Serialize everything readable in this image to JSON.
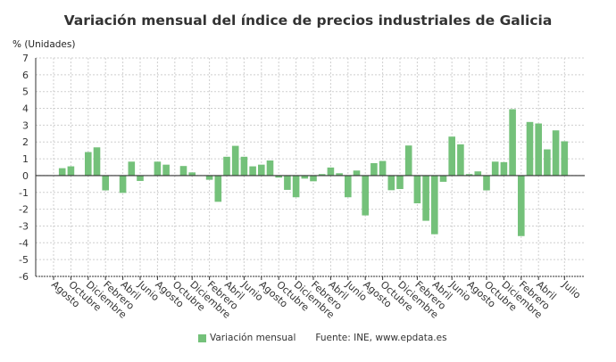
{
  "chart_data": {
    "type": "bar",
    "title": "Variación mensual del índice de precios industriales de Galicia",
    "ylabel": "% (Unidades)",
    "xlabel": "",
    "ylim": [
      -6,
      7
    ],
    "yticks": [
      7,
      6,
      5,
      4,
      3,
      2,
      1,
      0,
      -1,
      -2,
      -3,
      -4,
      -5,
      -6
    ],
    "grid": true,
    "legend_position": "bottom",
    "bar_color": "#74c17a",
    "tick_labels": [
      {
        "index": 0,
        "label": "Agosto"
      },
      {
        "index": 2,
        "label": "Octubre"
      },
      {
        "index": 4,
        "label": "Diciembre"
      },
      {
        "index": 6,
        "label": "Febrero"
      },
      {
        "index": 8,
        "label": "Abril"
      },
      {
        "index": 10,
        "label": "Junio"
      },
      {
        "index": 12,
        "label": "Agosto"
      },
      {
        "index": 14,
        "label": "Octubre"
      },
      {
        "index": 16,
        "label": "Diciembre"
      },
      {
        "index": 18,
        "label": "Febrero"
      },
      {
        "index": 20,
        "label": "Abril"
      },
      {
        "index": 22,
        "label": "Junio"
      },
      {
        "index": 24,
        "label": "Agosto"
      },
      {
        "index": 26,
        "label": "Octubre"
      },
      {
        "index": 28,
        "label": "Diciembre"
      },
      {
        "index": 30,
        "label": "Febrero"
      },
      {
        "index": 32,
        "label": "Abril"
      },
      {
        "index": 34,
        "label": "Junio"
      },
      {
        "index": 36,
        "label": "Agosto"
      },
      {
        "index": 38,
        "label": "Octubre"
      },
      {
        "index": 40,
        "label": "Diciembre"
      },
      {
        "index": 42,
        "label": "Febrero"
      },
      {
        "index": 44,
        "label": "Abril"
      },
      {
        "index": 46,
        "label": "Junio"
      },
      {
        "index": 48,
        "label": "Agosto"
      },
      {
        "index": 50,
        "label": "Octubre"
      },
      {
        "index": 52,
        "label": "Diciembre"
      },
      {
        "index": 54,
        "label": "Febrero"
      },
      {
        "index": 56,
        "label": "Abril"
      },
      {
        "index": 59,
        "label": "Julio"
      }
    ],
    "series": [
      {
        "name": "Variación mensual",
        "values": [
          0.02,
          0.44,
          0.55,
          0,
          1.4,
          1.68,
          -0.88,
          0,
          -1.03,
          0.83,
          -0.32,
          0.02,
          0.83,
          0.65,
          0,
          0.57,
          0.19,
          0,
          -0.25,
          -1.56,
          1.12,
          1.77,
          1.12,
          0.55,
          0.65,
          0.9,
          -0.12,
          -0.85,
          -1.29,
          -0.18,
          -0.34,
          0.09,
          0.48,
          0.14,
          -1.29,
          0.3,
          -2.37,
          0.74,
          0.87,
          -0.87,
          -0.8,
          1.79,
          -1.65,
          -2.69,
          -3.49,
          -0.37,
          2.32,
          1.86,
          0.09,
          0.25,
          -0.88,
          0.83,
          0.8,
          3.95,
          -3.6,
          3.19,
          3.1,
          1.56,
          2.69,
          2.04
        ]
      }
    ],
    "source": "Fuente: INE, www.epdata.es"
  }
}
